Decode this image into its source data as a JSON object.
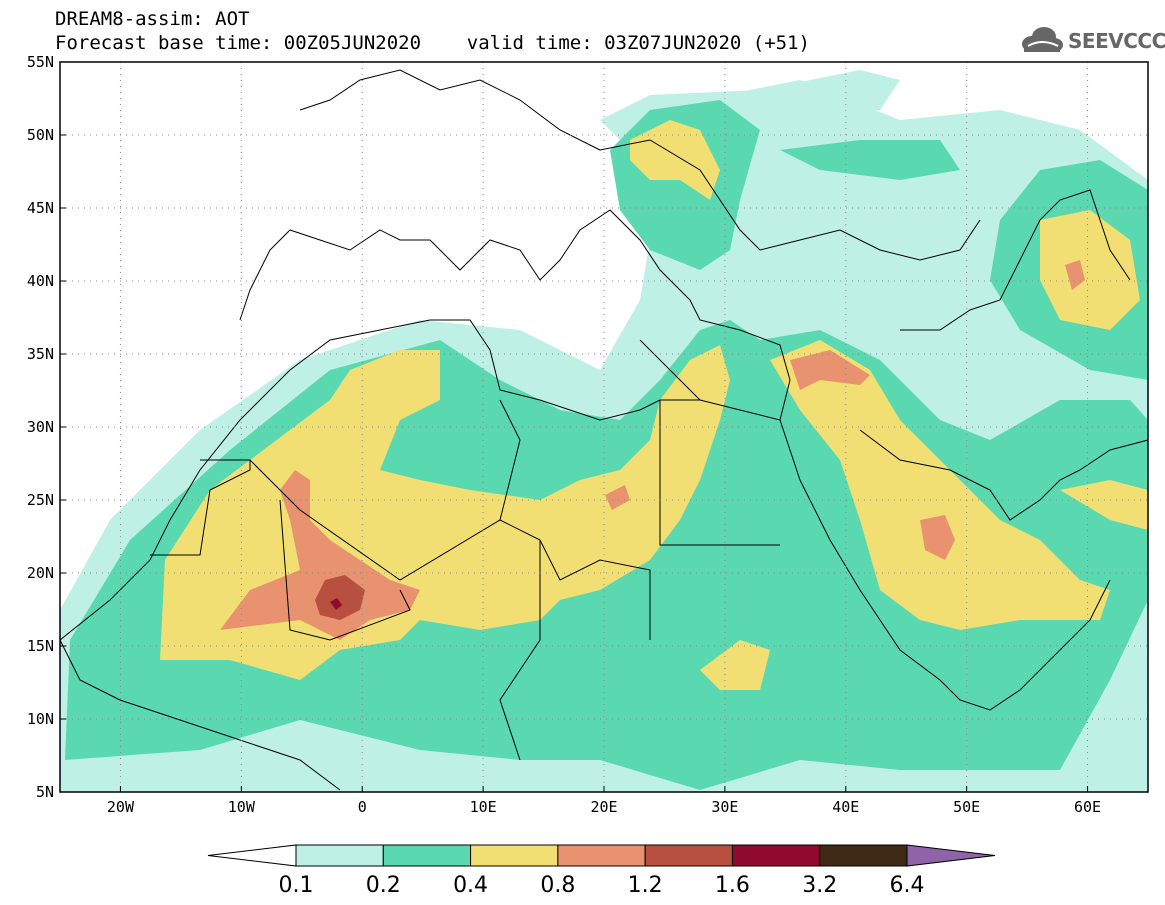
{
  "header": {
    "title_line1": "DREAM8-assim: AOT",
    "title_line2": "Forecast base time: 00Z05JUN2020    valid time: 03Z07JUN2020 (+51)"
  },
  "logo": {
    "text": "SEEVCCC",
    "icon": "cloud-icon",
    "color": "#666666"
  },
  "map": {
    "lat_labels": [
      "55N",
      "50N",
      "45N",
      "40N",
      "35N",
      "30N",
      "25N",
      "20N",
      "15N",
      "10N",
      "5N"
    ],
    "lon_labels": [
      "20W",
      "10W",
      "0",
      "10E",
      "20E",
      "30E",
      "40E",
      "50E",
      "60E"
    ],
    "lat_range": [
      5,
      55
    ],
    "lon_range": [
      -25,
      65
    ],
    "grid": "dotted"
  },
  "colorbar": {
    "labels": [
      "0.1",
      "0.2",
      "0.4",
      "0.8",
      "1.2",
      "1.6",
      "3.2",
      "6.4"
    ],
    "colors": [
      "#ffffff",
      "#bff0e6",
      "#5ad9b0",
      "#f2df73",
      "#e89270",
      "#b7503e",
      "#8f0a2c",
      "#3e2a16",
      "#8e63a8"
    ]
  }
}
